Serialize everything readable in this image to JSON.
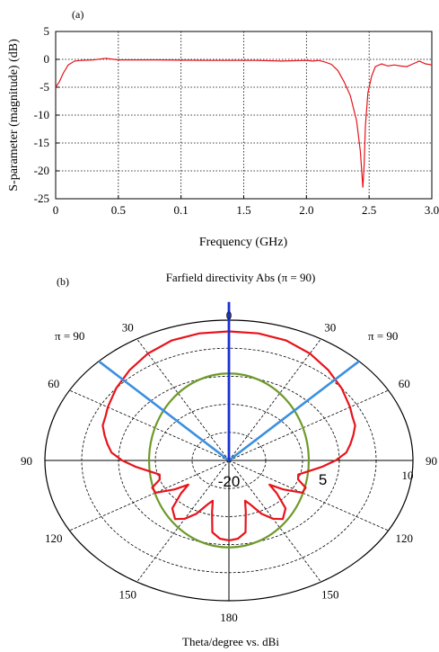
{
  "chart_data": [
    {
      "type": "line",
      "panel_label": "(a)",
      "title": "",
      "xlabel": "Frequency (GHz)",
      "ylabel": "S-parameter (magnitude) (dB)",
      "xlim": [
        0,
        3.0
      ],
      "ylim": [
        -25,
        5
      ],
      "grid": true,
      "xtick_labels": [
        "0",
        "0.5",
        "0.1",
        "1.5",
        "2.0",
        "2.5",
        "3.0"
      ],
      "ytick_labels": [
        "5",
        "0",
        "-5",
        "-10",
        "-15",
        "-20",
        "-25"
      ],
      "series": [
        {
          "color": "#e8131b",
          "x": [
            0,
            0.03,
            0.06,
            0.1,
            0.15,
            0.2,
            0.3,
            0.4,
            0.5,
            0.6,
            0.8,
            1.0,
            1.2,
            1.4,
            1.6,
            1.8,
            2.0,
            2.05,
            2.1,
            2.15,
            2.2,
            2.25,
            2.3,
            2.35,
            2.4,
            2.43,
            2.45,
            2.46,
            2.47,
            2.49,
            2.52,
            2.55,
            2.6,
            2.65,
            2.7,
            2.75,
            2.8,
            2.85,
            2.9,
            2.95,
            3.0
          ],
          "y": [
            -5,
            -4,
            -2.5,
            -1,
            -0.3,
            -0.2,
            -0.1,
            0.2,
            -0.1,
            -0.1,
            -0.1,
            -0.15,
            -0.2,
            -0.2,
            -0.2,
            -0.3,
            -0.2,
            -0.3,
            -0.2,
            -0.5,
            -0.9,
            -2,
            -4,
            -6.5,
            -11,
            -16.5,
            -23,
            -19,
            -12,
            -6,
            -3,
            -1.3,
            -0.8,
            -1.2,
            -1,
            -1.2,
            -1.3,
            -0.8,
            -0.3,
            -0.8,
            -1
          ]
        }
      ]
    },
    {
      "type": "polar",
      "panel_label": "(b)",
      "title": "Farfield directivity Abs (π = 90)",
      "xlabel": "Theta/degree vs. dBi",
      "corner_labels": [
        "π = 90",
        "π = 90"
      ],
      "angle_labels": [
        "0",
        "30",
        "60",
        "90",
        "120",
        "150",
        "180",
        "150",
        "120",
        "90",
        "60",
        "30"
      ],
      "radial_labels": [
        "-20",
        "5",
        "10"
      ],
      "series": [
        {
          "color": "#e8131b",
          "theta_deg": [
            0,
            10,
            20,
            30,
            40,
            50,
            60,
            65,
            70,
            75,
            80,
            85,
            90,
            95,
            100,
            105,
            110,
            115,
            120,
            125,
            128,
            132,
            138,
            145,
            150,
            155,
            160,
            163,
            166,
            170,
            175,
            180
          ],
          "r": [
            0.92,
            0.92,
            0.91,
            0.88,
            0.84,
            0.8,
            0.76,
            0.74,
            0.73,
            0.7,
            0.67,
            0.64,
            0.58,
            0.51,
            0.44,
            0.39,
            0.4,
            0.46,
            0.46,
            0.36,
            0.28,
            0.35,
            0.46,
            0.51,
            0.48,
            0.42,
            0.33,
            0.3,
            0.38,
            0.52,
            0.56,
            0.57
          ]
        },
        {
          "color": "#6e9a2a",
          "center_offset_y": 0,
          "r": 0.62
        },
        {
          "color": "#3a8fe0",
          "rays_deg": [
            -45,
            45
          ],
          "r": 1.0
        },
        {
          "color": "#1a2fd6",
          "rays_deg": [
            0
          ],
          "r": 1.13
        }
      ]
    }
  ]
}
